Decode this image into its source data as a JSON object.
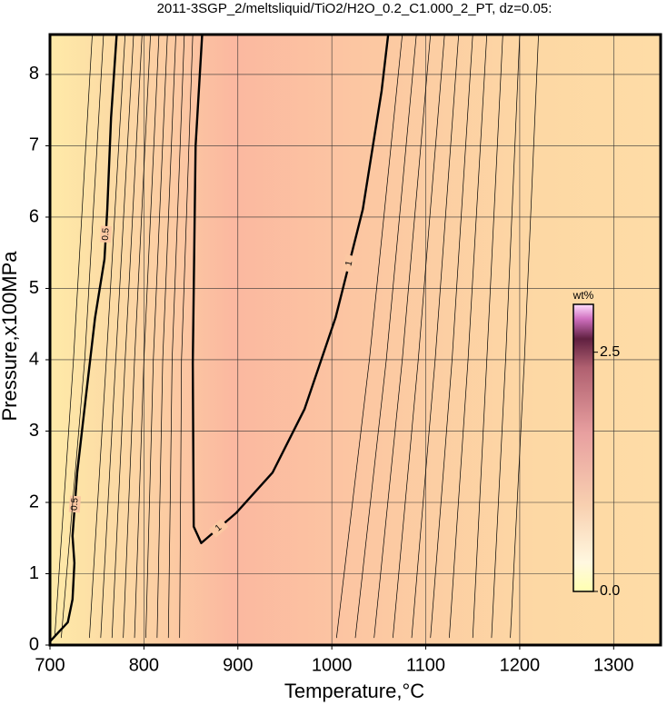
{
  "chart_data": {
    "type": "contour",
    "title": "2011-3SGP_2/meltsliquid/TiO2/H2O_0.2_C1.000_2_PT, dz=0.05:",
    "x_label": "Temperature,°C",
    "y_label": "Pressure,x100MPa",
    "xlim": [
      700,
      1350
    ],
    "xticks": [
      700,
      800,
      900,
      1000,
      1100,
      1200,
      1300
    ],
    "ylim": [
      0,
      8.56
    ],
    "yticks": [
      0,
      1,
      2,
      3,
      4,
      5,
      6,
      7,
      8
    ],
    "grid": true,
    "colorbar": {
      "label": "wt%",
      "lim": [
        0,
        3.0
      ],
      "ticks": [
        {
          "value": 0,
          "label": "0.0"
        },
        2.5
      ]
    },
    "contours": [
      {
        "level": 0.5,
        "bold": true,
        "x": [
          700,
          719,
          724,
          726,
          724,
          729,
          739,
          748,
          758,
          761,
          765,
          771
        ],
        "y": [
          0.05,
          0.32,
          0.64,
          1.15,
          1.53,
          2.42,
          3.57,
          4.59,
          5.41,
          6.11,
          7.39,
          8.56
        ]
      },
      {
        "level": 1,
        "bold": true,
        "x": [
          862,
          855,
          852,
          853,
          861,
          898,
          937,
          971,
          1004,
          1033,
          1053,
          1060
        ],
        "y": [
          8.56,
          7.0,
          3.95,
          1.66,
          1.43,
          1.85,
          2.42,
          3.31,
          4.59,
          6.11,
          7.77,
          8.56
        ]
      },
      {
        "level": 0.4,
        "x": [
          705,
          725,
          745
        ],
        "y": [
          0.1,
          4,
          8.56
        ]
      },
      {
        "level": 0.45,
        "x": [
          712,
          737,
          757
        ],
        "y": [
          0.1,
          4,
          8.56
        ]
      },
      {
        "level": 0.55,
        "x": [
          742,
          760,
          780
        ],
        "y": [
          0.1,
          4,
          8.56
        ]
      },
      {
        "level": 0.6,
        "x": [
          754,
          770,
          789
        ],
        "y": [
          0.1,
          4,
          8.56
        ]
      },
      {
        "level": 0.65,
        "x": [
          766,
          780,
          798
        ],
        "y": [
          0.1,
          4,
          8.56
        ]
      },
      {
        "level": 0.7,
        "x": [
          778,
          790,
          807
        ],
        "y": [
          0.1,
          4,
          8.56
        ]
      },
      {
        "level": 0.75,
        "x": [
          790,
          800,
          816
        ],
        "y": [
          0.1,
          4,
          8.56
        ]
      },
      {
        "level": 0.8,
        "x": [
          802,
          810,
          825
        ],
        "y": [
          0.1,
          4,
          8.56
        ]
      },
      {
        "level": 0.85,
        "x": [
          814,
          820,
          834
        ],
        "y": [
          0.1,
          4,
          8.56
        ]
      },
      {
        "level": 0.9,
        "x": [
          826,
          830,
          843
        ],
        "y": [
          0.1,
          4,
          8.56
        ]
      },
      {
        "level": 0.95,
        "x": [
          838,
          840,
          852
        ],
        "y": [
          0.1,
          4,
          8.56
        ]
      },
      {
        "level": 0.95,
        "x": [
          1005,
          1040,
          1075
        ],
        "y": [
          0.1,
          4,
          8.56
        ]
      },
      {
        "level": 0.9,
        "x": [
          1025,
          1058,
          1090
        ],
        "y": [
          0.1,
          4,
          8.56
        ]
      },
      {
        "level": 0.85,
        "x": [
          1045,
          1075,
          1105
        ],
        "y": [
          0.1,
          4,
          8.56
        ]
      },
      {
        "level": 0.8,
        "x": [
          1065,
          1092,
          1120
        ],
        "y": [
          0.1,
          4,
          8.56
        ]
      },
      {
        "level": 0.75,
        "x": [
          1085,
          1110,
          1135
        ],
        "y": [
          0.1,
          4,
          8.56
        ]
      },
      {
        "level": 0.7,
        "x": [
          1105,
          1128,
          1150
        ],
        "y": [
          0.1,
          4,
          8.56
        ]
      },
      {
        "level": 0.65,
        "x": [
          1125,
          1145,
          1165
        ],
        "y": [
          0.1,
          4,
          8.56
        ]
      },
      {
        "level": 0.6,
        "x": [
          1150,
          1165,
          1182
        ],
        "y": [
          0.1,
          4,
          8.56
        ]
      },
      {
        "level": 0.55,
        "x": [
          1170,
          1185,
          1200
        ],
        "y": [
          0.1,
          4,
          8.56
        ]
      },
      {
        "level": 0.5,
        "x": [
          1190,
          1205,
          1220
        ],
        "y": [
          0.1,
          4,
          8.56
        ]
      }
    ]
  }
}
